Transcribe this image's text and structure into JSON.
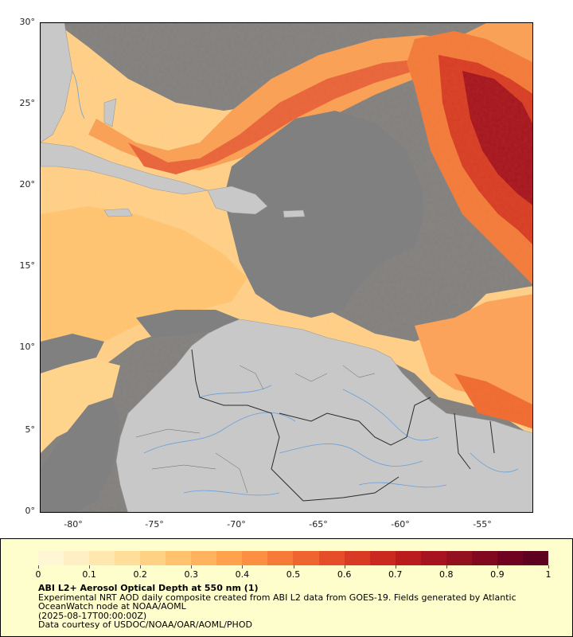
{
  "map": {
    "y_axis_labels": [
      "30°",
      "25°",
      "20°",
      "15°",
      "10°",
      "5°",
      "0°"
    ],
    "x_axis_labels": [
      "-80°",
      "-75°",
      "-70°",
      "-65°",
      "-60°",
      "-55°"
    ],
    "lat_range": [
      0,
      30
    ],
    "lon_range": [
      -82.2,
      -52.1
    ],
    "colors": {
      "no_data": "#808080",
      "land": "#c8c8c8",
      "rivers": "#6a9fd8",
      "borders": "#2a2a2a"
    }
  },
  "legend": {
    "colorbar_labels": [
      "0",
      "0.1",
      "0.2",
      "0.3",
      "0.4",
      "0.5",
      "0.6",
      "0.7",
      "0.8",
      "0.9",
      "1"
    ],
    "colors": [
      "#fff6d6",
      "#ffefc4",
      "#ffe7b0",
      "#ffde9a",
      "#ffd184",
      "#ffc370",
      "#ffb35e",
      "#fea24e",
      "#fb8f42",
      "#f67b38",
      "#ef6530",
      "#e54e29",
      "#d93a23",
      "#cb291f",
      "#ba1c1d",
      "#a7131e",
      "#93101f",
      "#80081f",
      "#6e0220",
      "#5e0020"
    ]
  },
  "caption": {
    "title": "ABI L2+ Aerosol Optical Depth at 550 nm (1)",
    "line1": "Experimental NRT AOD daily composite created from ABI L2 data from GOES-19. Fields generated by Atlantic",
    "line2": "OceanWatch node at NOAA/AOML",
    "line3": "(2025-08-17T00:00:00Z)",
    "line4": "Data courtesy of USDOC/NOAA/OAR/AOML/PHOD"
  }
}
